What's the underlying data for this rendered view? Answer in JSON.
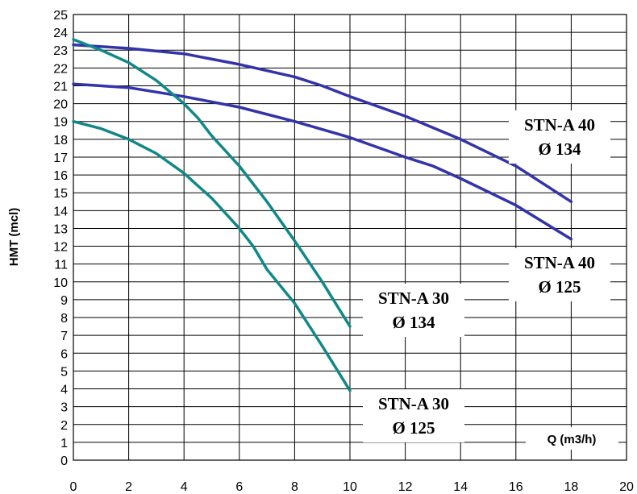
{
  "chart_data": {
    "type": "line",
    "title": "",
    "xlabel": "Q (m3/h)",
    "ylabel": "HMT (mcl)",
    "xlim": [
      0,
      20
    ],
    "ylim": [
      0,
      25
    ],
    "x_ticks": [
      "0",
      "2",
      "4",
      "6",
      "8",
      "10",
      "12",
      "14",
      "16",
      "18",
      "20"
    ],
    "y_ticks": [
      "0",
      "1",
      "2",
      "3",
      "4",
      "5",
      "6",
      "7",
      "8",
      "9",
      "10",
      "11",
      "12",
      "13",
      "14",
      "15",
      "16",
      "17",
      "18",
      "19",
      "20",
      "21",
      "22",
      "23",
      "24",
      "25"
    ],
    "grid": true,
    "series": [
      {
        "name": "STN-A 40 Ø 134",
        "color": "#3333aa",
        "x": [
          0,
          2,
          4,
          6,
          8,
          9,
          10,
          12,
          14,
          16,
          18
        ],
        "y": [
          23.3,
          23.1,
          22.8,
          22.2,
          21.5,
          21.0,
          20.4,
          19.3,
          18.0,
          16.5,
          14.5
        ]
      },
      {
        "name": "STN-A 40 Ø 125",
        "color": "#3333aa",
        "x": [
          0,
          2,
          4,
          6,
          8,
          10,
          12,
          13,
          14,
          16,
          18
        ],
        "y": [
          21.1,
          20.9,
          20.4,
          19.8,
          19.0,
          18.1,
          17.0,
          16.5,
          15.8,
          14.3,
          12.4
        ]
      },
      {
        "name": "STN-A 30 Ø 134",
        "color": "#118888",
        "x": [
          0,
          1,
          2,
          3,
          4,
          4.5,
          5,
          6,
          7,
          8,
          9,
          10
        ],
        "y": [
          23.6,
          23.0,
          22.3,
          21.3,
          20.0,
          19.2,
          18.2,
          16.5,
          14.5,
          12.3,
          10.0,
          7.5
        ]
      },
      {
        "name": "STN-A 30 Ø 125",
        "color": "#118888",
        "x": [
          0,
          1,
          2,
          3,
          4,
          4.5,
          5,
          6,
          6.5,
          7,
          8,
          9,
          10
        ],
        "y": [
          19.0,
          18.6,
          18.0,
          17.2,
          16.1,
          15.4,
          14.7,
          13.0,
          12.0,
          10.7,
          8.8,
          6.4,
          3.9
        ]
      }
    ],
    "labels": [
      {
        "line1": "STN-A 40",
        "line2": "Ø 134"
      },
      {
        "line1": "STN-A 40",
        "line2": "Ø 125"
      },
      {
        "line1": "STN-A 30",
        "line2": "Ø 134"
      },
      {
        "line1": "STN-A 30",
        "line2": "Ø 125"
      }
    ]
  }
}
